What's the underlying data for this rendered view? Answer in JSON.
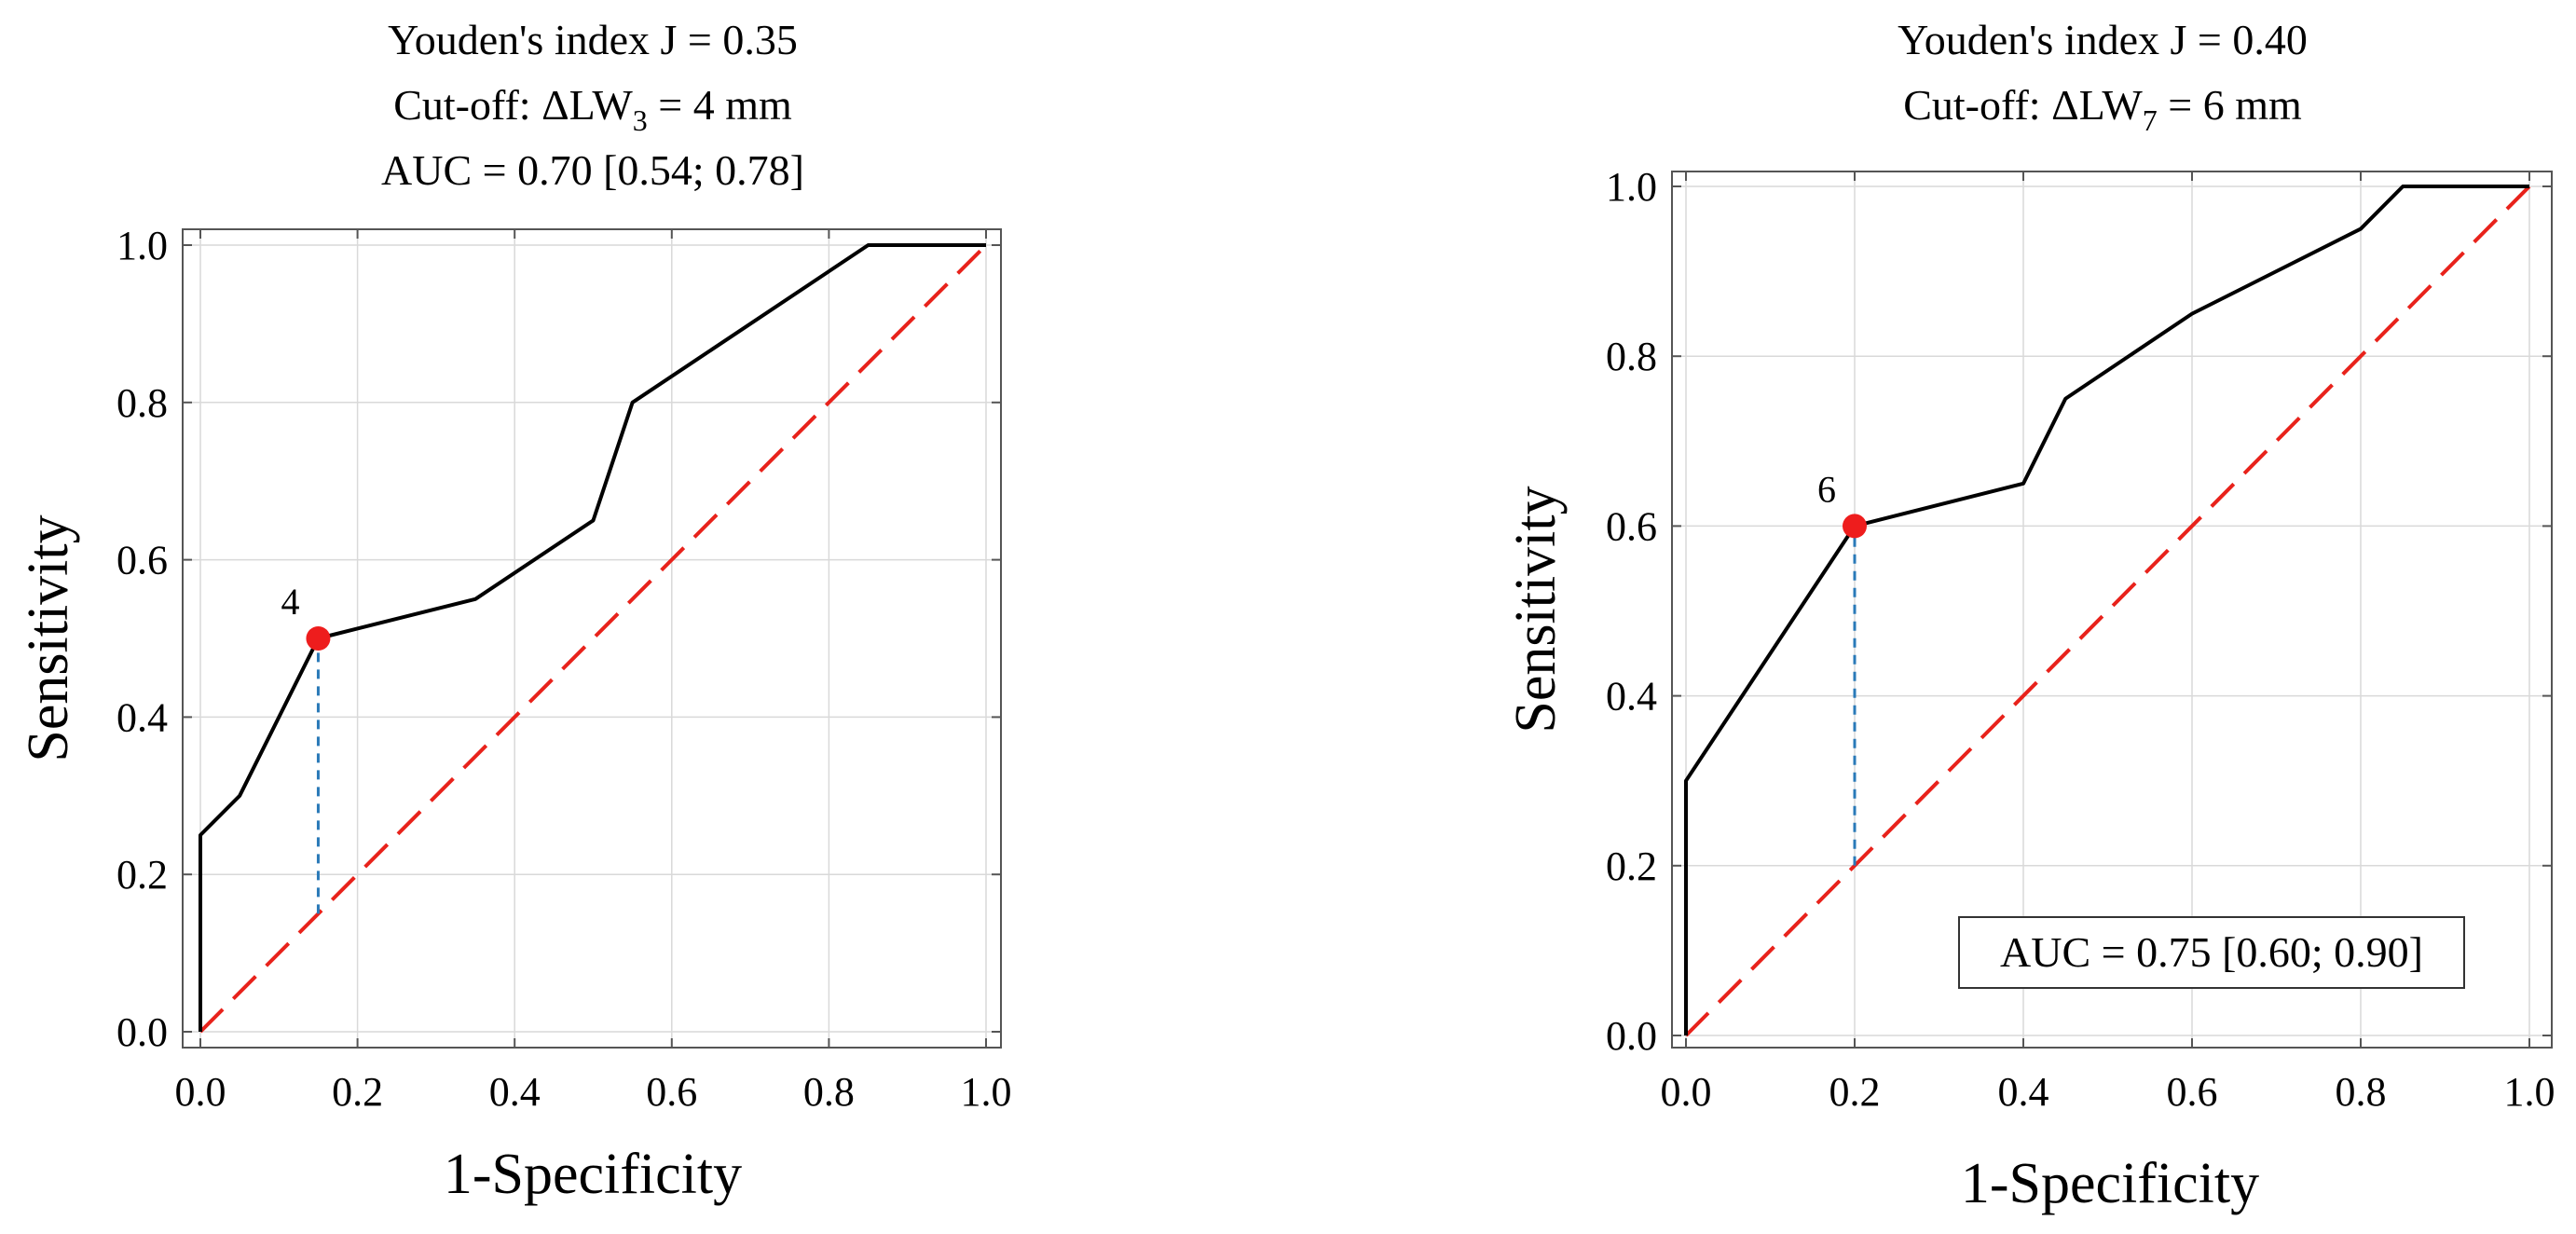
{
  "chart_data": [
    {
      "type": "line",
      "title_lines": {
        "youden": "Youden's index J = 0.35",
        "cutoff_prefix": "Cut-off: ΔLW",
        "cutoff_sub": "3",
        "cutoff_suffix": " = 4 mm",
        "auc": "AUC = 0.70 [0.54; 0.78]"
      },
      "xlabel": "1-Specificity",
      "ylabel": "Sensitivity",
      "xlim": [
        0,
        1
      ],
      "ylim": [
        0,
        1
      ],
      "x_ticks": [
        "0.0",
        "0.2",
        "0.4",
        "0.6",
        "0.8",
        "1.0"
      ],
      "y_ticks": [
        "0.0",
        "0.2",
        "0.4",
        "0.6",
        "0.8",
        "1.0"
      ],
      "grid": true,
      "series": [
        {
          "name": "ROC",
          "color": "#000000",
          "x": [
            0.0,
            0.0,
            0.05,
            0.15,
            0.35,
            0.5,
            0.55,
            0.85,
            1.0
          ],
          "y": [
            0.0,
            0.25,
            0.3,
            0.5,
            0.55,
            0.65,
            0.8,
            1.0,
            1.0
          ]
        },
        {
          "name": "Reference",
          "color": "#e8221b",
          "x": [
            0.0,
            1.0
          ],
          "y": [
            0.0,
            1.0
          ]
        }
      ],
      "cutoff_point": {
        "x": 0.15,
        "y": 0.5,
        "label": "4",
        "color": "#ee1d1d"
      },
      "youden_line": {
        "x": 0.15,
        "y_from": 0.15,
        "y_to": 0.5,
        "color": "#2a7ab8"
      }
    },
    {
      "type": "line",
      "title_lines": {
        "youden": "Youden's index J = 0.40",
        "cutoff_prefix": "Cut-off: ΔLW",
        "cutoff_sub": "7",
        "cutoff_suffix": " = 6 mm"
      },
      "auc_box": "AUC = 0.75 [0.60; 0.90]",
      "xlabel": "1-Specificity",
      "ylabel": "Sensitivity",
      "xlim": [
        0,
        1
      ],
      "ylim": [
        0,
        1
      ],
      "x_ticks": [
        "0.0",
        "0.2",
        "0.4",
        "0.6",
        "0.8",
        "1.0"
      ],
      "y_ticks": [
        "0.0",
        "0.2",
        "0.4",
        "0.6",
        "0.8",
        "1.0"
      ],
      "grid": true,
      "series": [
        {
          "name": "ROC",
          "color": "#000000",
          "x": [
            0.0,
            0.0,
            0.2,
            0.4,
            0.45,
            0.6,
            0.8,
            0.85,
            1.0
          ],
          "y": [
            0.0,
            0.3,
            0.6,
            0.65,
            0.75,
            0.85,
            0.95,
            1.0,
            1.0
          ]
        },
        {
          "name": "Reference",
          "color": "#e8221b",
          "x": [
            0.0,
            1.0
          ],
          "y": [
            0.0,
            1.0
          ]
        }
      ],
      "cutoff_point": {
        "x": 0.2,
        "y": 0.6,
        "label": "6",
        "color": "#ee1d1d"
      },
      "youden_line": {
        "x": 0.2,
        "y_from": 0.2,
        "y_to": 0.6,
        "color": "#2a7ab8"
      }
    }
  ]
}
